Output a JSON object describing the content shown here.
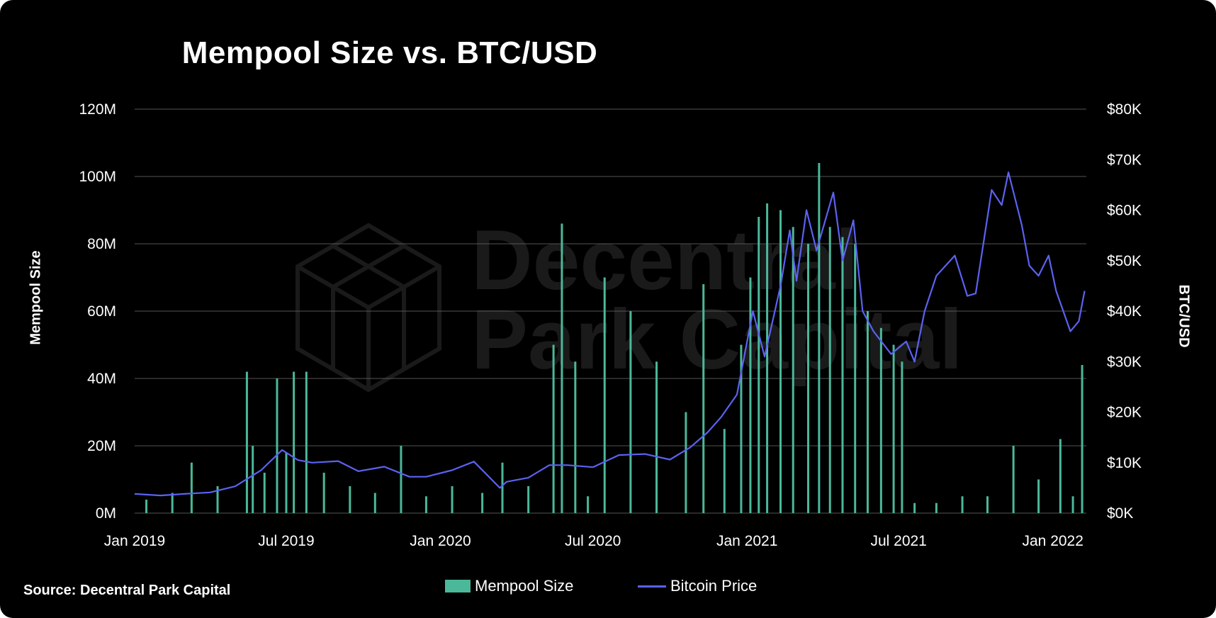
{
  "chart_data": {
    "type": "bar+line",
    "title": "Mempool Size vs. BTC/USD",
    "ylabel_left": "Mempool Size",
    "ylabel_right": "BTC/USD",
    "source": "Source: Decentral Park Capital",
    "watermark": [
      "Decentral",
      "Park Capital"
    ],
    "x_ticks": [
      "Jan 2019",
      "Jul 2019",
      "Jan 2020",
      "Jul 2020",
      "Jan 2021",
      "Jul 2021",
      "Jan 2022"
    ],
    "x_tick_dates": [
      "2019-01-01",
      "2019-07-01",
      "2020-01-01",
      "2020-07-01",
      "2021-01-01",
      "2021-07-01",
      "2022-01-01"
    ],
    "xlim": [
      "2019-01-01",
      "2022-02-10"
    ],
    "y_left_ticks": [
      "0M",
      "20M",
      "40M",
      "60M",
      "80M",
      "100M",
      "120M"
    ],
    "y_left_lim": [
      0,
      120000000
    ],
    "y_right_ticks": [
      "$0K",
      "$10K",
      "$20K",
      "$30K",
      "$40K",
      "$50K",
      "$60K",
      "$70K",
      "$80K"
    ],
    "y_right_lim": [
      0,
      80000
    ],
    "grid": true,
    "legend_position": "bottom",
    "colors": {
      "background": "#000000",
      "mempool": "#4bb89a",
      "price": "#5b62f0",
      "grid": "#555555",
      "watermark": "#1a1a1a"
    },
    "series": [
      {
        "name": "Mempool Size",
        "type": "bar",
        "axis": "left",
        "dates": [
          "2019-01-15",
          "2019-02-15",
          "2019-03-10",
          "2019-04-10",
          "2019-05-15",
          "2019-05-22",
          "2019-06-05",
          "2019-06-20",
          "2019-07-01",
          "2019-07-10",
          "2019-07-25",
          "2019-08-15",
          "2019-09-15",
          "2019-10-15",
          "2019-11-15",
          "2019-12-15",
          "2020-01-15",
          "2020-02-20",
          "2020-03-15",
          "2020-04-15",
          "2020-05-15",
          "2020-05-25",
          "2020-06-10",
          "2020-06-25",
          "2020-07-15",
          "2020-08-15",
          "2020-09-15",
          "2020-10-20",
          "2020-11-10",
          "2020-12-05",
          "2020-12-25",
          "2021-01-05",
          "2021-01-15",
          "2021-01-25",
          "2021-02-10",
          "2021-02-25",
          "2021-03-15",
          "2021-03-28",
          "2021-04-10",
          "2021-04-25",
          "2021-05-10",
          "2021-05-25",
          "2021-06-10",
          "2021-06-25",
          "2021-07-05",
          "2021-07-20",
          "2021-08-15",
          "2021-09-15",
          "2021-10-15",
          "2021-11-15",
          "2021-12-15",
          "2022-01-10",
          "2022-01-25",
          "2022-02-05"
        ],
        "values": [
          4000000,
          6000000,
          15000000,
          8000000,
          42000000,
          20000000,
          12000000,
          40000000,
          18000000,
          42000000,
          42000000,
          12000000,
          8000000,
          6000000,
          20000000,
          5000000,
          8000000,
          6000000,
          15000000,
          8000000,
          50000000,
          86000000,
          45000000,
          5000000,
          70000000,
          60000000,
          45000000,
          30000000,
          68000000,
          25000000,
          50000000,
          70000000,
          88000000,
          92000000,
          90000000,
          85000000,
          80000000,
          104000000,
          85000000,
          82000000,
          80000000,
          60000000,
          55000000,
          50000000,
          45000000,
          3000000,
          3000000,
          5000000,
          5000000,
          20000000,
          10000000,
          22000000,
          5000000,
          44000000
        ]
      },
      {
        "name": "Bitcoin Price",
        "type": "line",
        "axis": "right",
        "dates": [
          "2019-01-01",
          "2019-02-01",
          "2019-03-01",
          "2019-04-01",
          "2019-05-01",
          "2019-06-01",
          "2019-06-26",
          "2019-07-15",
          "2019-08-01",
          "2019-09-01",
          "2019-09-25",
          "2019-10-26",
          "2019-11-25",
          "2019-12-15",
          "2020-01-15",
          "2020-02-10",
          "2020-03-12",
          "2020-03-20",
          "2020-04-15",
          "2020-05-10",
          "2020-06-01",
          "2020-07-01",
          "2020-08-01",
          "2020-09-01",
          "2020-10-01",
          "2020-10-25",
          "2020-11-15",
          "2020-12-01",
          "2020-12-20",
          "2021-01-08",
          "2021-01-22",
          "2021-02-10",
          "2021-02-21",
          "2021-03-01",
          "2021-03-13",
          "2021-03-25",
          "2021-04-14",
          "2021-04-25",
          "2021-05-08",
          "2021-05-19",
          "2021-06-01",
          "2021-06-22",
          "2021-07-10",
          "2021-07-20",
          "2021-08-01",
          "2021-08-15",
          "2021-09-06",
          "2021-09-21",
          "2021-10-01",
          "2021-10-20",
          "2021-11-01",
          "2021-11-09",
          "2021-11-25",
          "2021-12-04",
          "2021-12-15",
          "2021-12-27",
          "2022-01-05",
          "2022-01-22",
          "2022-02-01",
          "2022-02-08"
        ],
        "values": [
          3800,
          3500,
          3800,
          4100,
          5300,
          8500,
          12500,
          10500,
          10000,
          10300,
          8300,
          9200,
          7200,
          7200,
          8500,
          10200,
          5000,
          6200,
          7000,
          9500,
          9500,
          9100,
          11500,
          11700,
          10600,
          13000,
          16000,
          19000,
          23500,
          40000,
          31000,
          45000,
          56000,
          46000,
          60000,
          52000,
          63500,
          50000,
          58000,
          40000,
          36000,
          31500,
          34000,
          30000,
          40000,
          47000,
          51000,
          43000,
          43500,
          64000,
          61000,
          67500,
          57000,
          49000,
          47000,
          51000,
          44000,
          36000,
          38000,
          44000
        ]
      }
    ]
  },
  "legend": {
    "mempool_label": "Mempool Size",
    "price_label": "Bitcoin Price"
  }
}
